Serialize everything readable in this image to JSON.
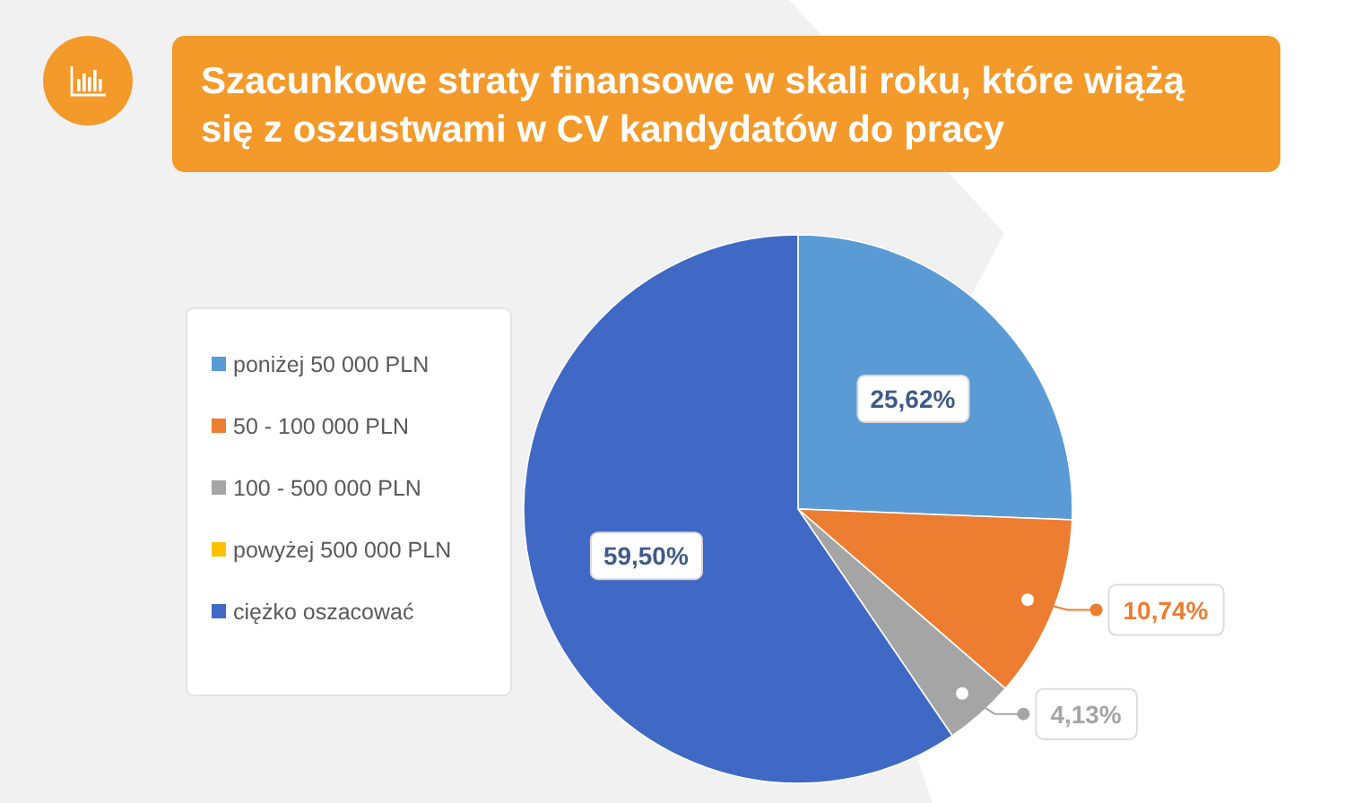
{
  "chart_data": {
    "type": "pie",
    "title": "Szacunkowe straty finansowe w skali roku, które wiążą się z oszustwami w CV kandydatów do pracy",
    "categories": [
      "poniżej 50 000 PLN",
      "50 - 100 000 PLN",
      "100 - 500 000 PLN",
      "powyżej 500 000 PLN",
      "ciężko oszacować"
    ],
    "values": [
      25.62,
      10.74,
      4.13,
      0,
      59.5
    ],
    "value_labels": [
      "25,62%",
      "10,74%",
      "4,13%",
      null,
      "59,50%"
    ],
    "colors": [
      "#5b9bd5",
      "#ed7d31",
      "#a5a5a5",
      "#ffc000",
      "#3f69c4"
    ],
    "legend": "left"
  }
}
